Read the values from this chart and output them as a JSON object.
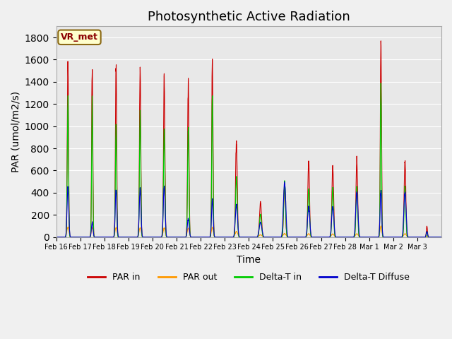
{
  "title": "Photosynthetic Active Radiation",
  "ylabel": "PAR (umol/m2/s)",
  "xlabel": "Time",
  "label_text": "VR_met",
  "tick_labels": [
    "Feb 16",
    "Feb 17",
    "Feb 18",
    "Feb 19",
    "Feb 20",
    "Feb 21",
    "Feb 22",
    "Feb 23",
    "Feb 24",
    "Feb 25",
    "Feb 26",
    "Feb 27",
    "Feb 28",
    "Mar 1",
    "Mar 2",
    "Mar 3"
  ],
  "ylim": [
    0,
    1900
  ],
  "yticks": [
    0,
    200,
    400,
    600,
    800,
    1000,
    1200,
    1400,
    1600,
    1800
  ],
  "series": {
    "PAR_in": {
      "color": "#cc0000",
      "label": "PAR in"
    },
    "PAR_out": {
      "color": "#ff9900",
      "label": "PAR out"
    },
    "DeltaT_in": {
      "color": "#00cc00",
      "label": "Delta-T in"
    },
    "DeltaT_Diffuse": {
      "color": "#0000cc",
      "label": "Delta-T Diffuse"
    }
  },
  "fig_bg": "#f0f0f0",
  "ax_bg": "#e8e8e8",
  "grid_color": "#ffffff",
  "title_fontsize": 13,
  "axis_label_fontsize": 10,
  "tick_fontsize": 7,
  "legend_fontsize": 9,
  "vr_met_color": "#8B0000",
  "vr_met_bg": "#ffffcc",
  "vr_met_edge": "#8B6914"
}
